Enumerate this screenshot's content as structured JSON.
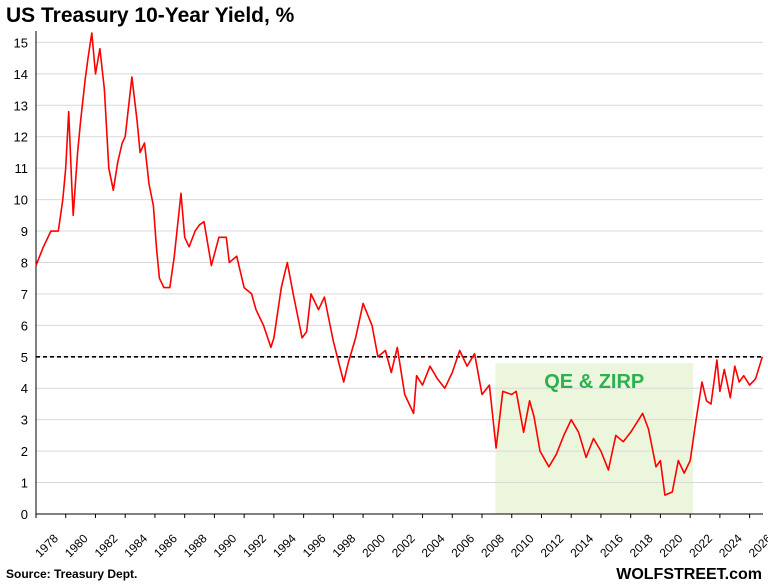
{
  "chart_data": {
    "type": "line",
    "title": "US Treasury 10-Year Yield, %",
    "ylim": [
      0,
      15.3
    ],
    "yticks": [
      0,
      1,
      2,
      3,
      4,
      5,
      6,
      7,
      8,
      9,
      10,
      11,
      12,
      13,
      14,
      15
    ],
    "xlim": [
      1978,
      2026.9
    ],
    "xticks": [
      "1978",
      "1980",
      "1982",
      "1984",
      "1986",
      "1988",
      "1990",
      "1992",
      "1994",
      "1996",
      "1998",
      "2000",
      "2002",
      "2004",
      "2006",
      "2008",
      "2010",
      "2012",
      "2014",
      "2016",
      "2018",
      "2020",
      "2022",
      "2024",
      "2026"
    ],
    "grid": "horizontal",
    "reference_line": {
      "y": 5,
      "style": "dashed"
    },
    "shaded_region": {
      "x_start": 2008.9,
      "x_end": 2022.2,
      "label": "QE & ZIRP",
      "color": "#ebf6dc",
      "label_color": "#2eb050"
    },
    "series": [
      {
        "color": "#ff0000",
        "points": [
          [
            1978.0,
            7.9
          ],
          [
            1978.5,
            8.5
          ],
          [
            1979.0,
            9.0
          ],
          [
            1979.5,
            9.0
          ],
          [
            1979.8,
            10.0
          ],
          [
            1980.0,
            11.0
          ],
          [
            1980.2,
            12.8
          ],
          [
            1980.4,
            10.5
          ],
          [
            1980.5,
            9.5
          ],
          [
            1980.8,
            11.5
          ],
          [
            1981.0,
            12.5
          ],
          [
            1981.3,
            13.8
          ],
          [
            1981.5,
            14.5
          ],
          [
            1981.75,
            15.3
          ],
          [
            1982.0,
            14.0
          ],
          [
            1982.3,
            14.8
          ],
          [
            1982.6,
            13.5
          ],
          [
            1982.9,
            11.0
          ],
          [
            1983.2,
            10.3
          ],
          [
            1983.5,
            11.2
          ],
          [
            1983.8,
            11.8
          ],
          [
            1984.0,
            12.0
          ],
          [
            1984.45,
            13.9
          ],
          [
            1984.8,
            12.5
          ],
          [
            1985.0,
            11.5
          ],
          [
            1985.3,
            11.8
          ],
          [
            1985.6,
            10.5
          ],
          [
            1985.9,
            9.8
          ],
          [
            1986.1,
            8.5
          ],
          [
            1986.3,
            7.5
          ],
          [
            1986.6,
            7.2
          ],
          [
            1987.0,
            7.2
          ],
          [
            1987.3,
            8.2
          ],
          [
            1987.75,
            10.2
          ],
          [
            1988.0,
            8.8
          ],
          [
            1988.3,
            8.5
          ],
          [
            1988.7,
            9.0
          ],
          [
            1989.0,
            9.2
          ],
          [
            1989.3,
            9.3
          ],
          [
            1989.8,
            7.9
          ],
          [
            1990.3,
            8.8
          ],
          [
            1990.8,
            8.8
          ],
          [
            1991.0,
            8.0
          ],
          [
            1991.5,
            8.2
          ],
          [
            1992.0,
            7.2
          ],
          [
            1992.5,
            7.0
          ],
          [
            1992.8,
            6.5
          ],
          [
            1993.3,
            6.0
          ],
          [
            1993.8,
            5.3
          ],
          [
            1994.0,
            5.6
          ],
          [
            1994.5,
            7.2
          ],
          [
            1994.9,
            8.0
          ],
          [
            1995.3,
            7.0
          ],
          [
            1995.9,
            5.6
          ],
          [
            1996.2,
            5.8
          ],
          [
            1996.5,
            7.0
          ],
          [
            1997.0,
            6.5
          ],
          [
            1997.4,
            6.9
          ],
          [
            1998.0,
            5.5
          ],
          [
            1998.7,
            4.2
          ],
          [
            1999.0,
            4.8
          ],
          [
            1999.5,
            5.6
          ],
          [
            2000.0,
            6.7
          ],
          [
            2000.6,
            6.0
          ],
          [
            2001.0,
            5.0
          ],
          [
            2001.5,
            5.2
          ],
          [
            2001.9,
            4.5
          ],
          [
            2002.3,
            5.3
          ],
          [
            2002.8,
            3.8
          ],
          [
            2003.4,
            3.2
          ],
          [
            2003.6,
            4.4
          ],
          [
            2004.0,
            4.1
          ],
          [
            2004.5,
            4.7
          ],
          [
            2005.0,
            4.3
          ],
          [
            2005.5,
            4.0
          ],
          [
            2006.0,
            4.5
          ],
          [
            2006.5,
            5.2
          ],
          [
            2007.0,
            4.7
          ],
          [
            2007.5,
            5.1
          ],
          [
            2008.0,
            3.8
          ],
          [
            2008.5,
            4.1
          ],
          [
            2008.95,
            2.1
          ],
          [
            2009.4,
            3.9
          ],
          [
            2010.0,
            3.8
          ],
          [
            2010.3,
            3.9
          ],
          [
            2010.8,
            2.6
          ],
          [
            2011.2,
            3.6
          ],
          [
            2011.5,
            3.1
          ],
          [
            2011.9,
            2.0
          ],
          [
            2012.5,
            1.5
          ],
          [
            2013.0,
            1.9
          ],
          [
            2013.5,
            2.5
          ],
          [
            2014.0,
            3.0
          ],
          [
            2014.5,
            2.6
          ],
          [
            2015.0,
            1.8
          ],
          [
            2015.5,
            2.4
          ],
          [
            2016.0,
            2.0
          ],
          [
            2016.5,
            1.4
          ],
          [
            2017.0,
            2.5
          ],
          [
            2017.5,
            2.3
          ],
          [
            2018.0,
            2.6
          ],
          [
            2018.8,
            3.2
          ],
          [
            2019.2,
            2.7
          ],
          [
            2019.7,
            1.5
          ],
          [
            2020.0,
            1.7
          ],
          [
            2020.3,
            0.6
          ],
          [
            2020.8,
            0.7
          ],
          [
            2021.2,
            1.7
          ],
          [
            2021.6,
            1.3
          ],
          [
            2022.0,
            1.7
          ],
          [
            2022.4,
            3.0
          ],
          [
            2022.8,
            4.2
          ],
          [
            2023.1,
            3.6
          ],
          [
            2023.4,
            3.5
          ],
          [
            2023.8,
            4.9
          ],
          [
            2024.0,
            3.9
          ],
          [
            2024.3,
            4.6
          ],
          [
            2024.7,
            3.7
          ],
          [
            2025.0,
            4.7
          ],
          [
            2025.3,
            4.2
          ],
          [
            2025.6,
            4.4
          ],
          [
            2026.0,
            4.1
          ],
          [
            2026.4,
            4.3
          ],
          [
            2026.85,
            5.0
          ]
        ]
      }
    ],
    "source": "Source: Treasury Dept.",
    "brand": "WOLFSTREET.com"
  }
}
